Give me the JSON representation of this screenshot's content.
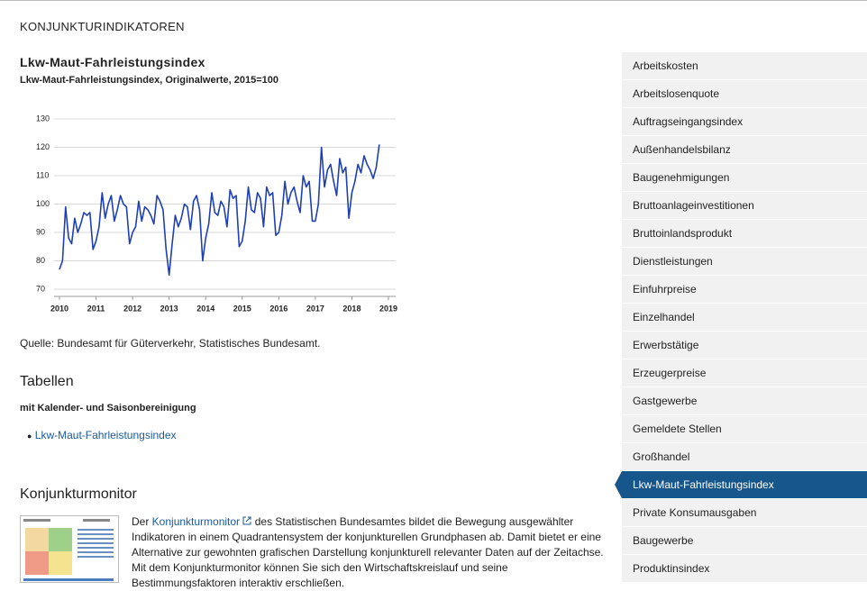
{
  "header": {
    "title": "KONJUNKTURINDIKATOREN"
  },
  "chart_data": {
    "type": "line",
    "title": "Lkw-Maut-Fahrleistungsindex",
    "subtitle": "Lkw-Maut-Fahrleistungsindex, Originalwerte, 2015=100",
    "color": "#1f3fb4",
    "grid": true,
    "xlim": [
      2010,
      2019
    ],
    "xticks": [
      2010,
      2011,
      2012,
      2013,
      2014,
      2015,
      2016,
      2017,
      2018,
      2019
    ],
    "ylim": [
      70,
      130
    ],
    "yticks": [
      70,
      80,
      90,
      100,
      110,
      120,
      130
    ],
    "x": [
      2010,
      2010.083,
      2010.167,
      2010.25,
      2010.333,
      2010.417,
      2010.5,
      2010.583,
      2010.667,
      2010.75,
      2010.833,
      2010.917,
      2011,
      2011.083,
      2011.167,
      2011.25,
      2011.333,
      2011.417,
      2011.5,
      2011.583,
      2011.667,
      2011.75,
      2011.833,
      2011.917,
      2012,
      2012.083,
      2012.167,
      2012.25,
      2012.333,
      2012.417,
      2012.5,
      2012.583,
      2012.667,
      2012.75,
      2012.833,
      2012.917,
      2013,
      2013.083,
      2013.167,
      2013.25,
      2013.333,
      2013.417,
      2013.5,
      2013.583,
      2013.667,
      2013.75,
      2013.833,
      2013.917,
      2014,
      2014.083,
      2014.167,
      2014.25,
      2014.333,
      2014.417,
      2014.5,
      2014.583,
      2014.667,
      2014.75,
      2014.833,
      2014.917,
      2015,
      2015.083,
      2015.167,
      2015.25,
      2015.333,
      2015.417,
      2015.5,
      2015.583,
      2015.667,
      2015.75,
      2015.833,
      2015.917,
      2016,
      2016.083,
      2016.167,
      2016.25,
      2016.333,
      2016.417,
      2016.5,
      2016.583,
      2016.667,
      2016.75,
      2016.833,
      2016.917,
      2017,
      2017.083,
      2017.167,
      2017.25,
      2017.333,
      2017.417,
      2017.5,
      2017.583,
      2017.667,
      2017.75,
      2017.833,
      2017.917,
      2018,
      2018.083,
      2018.167,
      2018.25,
      2018.333,
      2018.417,
      2018.5,
      2018.583,
      2018.667,
      2018.75
    ],
    "values": [
      77,
      80,
      99,
      88,
      86,
      95,
      90,
      93,
      97,
      96,
      97,
      84,
      87,
      92,
      104,
      95,
      100,
      103,
      94,
      98,
      103,
      100,
      99,
      86,
      90,
      92,
      101,
      94,
      99,
      98,
      96,
      93,
      103,
      101,
      98,
      84,
      75,
      86,
      96,
      92,
      95,
      100,
      99,
      91,
      101,
      103,
      98,
      80,
      88,
      93,
      104,
      97,
      96,
      101,
      99,
      92,
      105,
      102,
      103,
      85,
      87,
      94,
      106,
      98,
      97,
      104,
      102,
      92,
      106,
      103,
      104,
      89,
      90,
      96,
      108,
      100,
      104,
      106,
      101,
      97,
      110,
      106,
      108,
      94,
      94,
      100,
      120,
      106,
      112,
      114,
      108,
      103,
      116,
      111,
      113,
      95,
      104,
      108,
      114,
      111,
      117,
      114,
      112,
      109,
      113,
      121
    ]
  },
  "source": "Quelle: Bundesamt für Güterverkehr, Statistisches Bundesamt.",
  "tables": {
    "heading": "Tabellen",
    "subheading": "mit Kalender- und Saisonbereinigung",
    "links": [
      "Lkw-Maut-Fahrleistungsindex"
    ]
  },
  "monitor": {
    "heading": "Konjunkturmonitor",
    "text_before": "Der ",
    "link": "Konjunkturmonitor",
    "text_after": " des Statistischen Bundesamtes bildet die Bewegung ausgewählter Indikatoren in einem Quadrantensystem der konjunkturellen Grundphasen ab. Damit bietet er eine Alternative zur gewohnten grafischen Darstellung konjunkturell relevanter Daten auf der Zeitachse. Mit dem Konjunkturmonitor können Sie sich den Wirtschaftskreislauf und seine Bestimmungsfaktoren interaktiv erschließen."
  },
  "sidebar": {
    "active_item": 15,
    "items": [
      "Arbeitskosten",
      "Arbeitslosenquote",
      "Auftragseingangsindex",
      "Außenhandelsbilanz",
      "Baugenehmigungen",
      "Bruttoanlageinvestitionen",
      "Bruttoinlandsprodukt",
      "Dienstleistungen",
      "Einfuhrpreise",
      "Einzelhandel",
      "Erwerbstätige",
      "Erzeugerpreise",
      "Gastgewerbe",
      "Gemeldete Stellen",
      "Großhandel",
      "Lkw-Maut-Fahrleistungsindex",
      "Private Konsumausgaben",
      "Baugewerbe",
      "Produktinsindex"
    ]
  }
}
